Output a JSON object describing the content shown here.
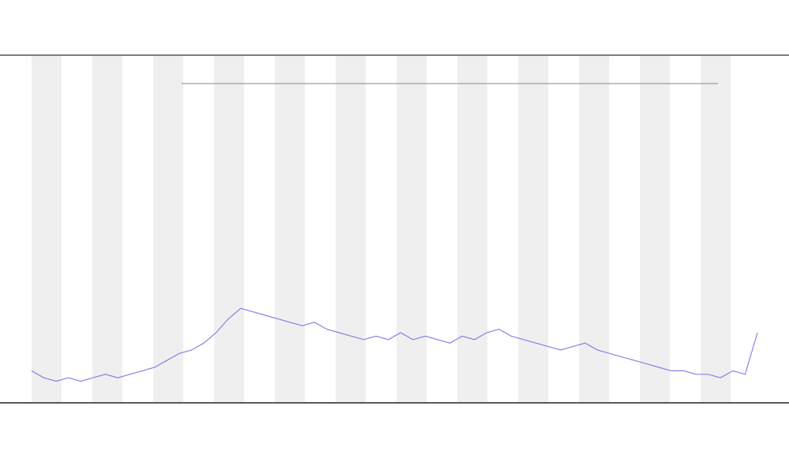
{
  "chart_data": {
    "type": "line",
    "x": [
      1,
      2,
      3,
      4,
      5,
      6,
      7,
      8,
      9,
      10,
      11,
      12,
      13,
      14,
      15,
      16,
      17,
      18,
      19,
      20,
      21,
      22,
      23,
      24,
      25,
      26,
      27,
      28,
      29,
      30,
      31,
      32,
      33,
      34,
      35,
      36,
      37,
      38,
      39,
      40,
      41,
      42,
      43,
      44,
      45,
      46,
      47,
      48,
      49,
      50,
      51,
      52,
      53,
      54,
      55,
      56,
      57,
      58,
      59,
      60
    ],
    "xlim": [
      1,
      60
    ],
    "ylim": [
      0,
      100
    ],
    "series": [
      {
        "color": "#6f6fe0",
        "values": [
          9,
          7,
          6,
          7,
          6,
          7,
          8,
          7,
          8,
          9,
          10,
          12,
          14,
          15,
          17,
          20,
          24,
          27,
          26,
          25,
          24,
          23,
          22,
          23,
          21,
          20,
          19,
          18,
          19,
          18,
          20,
          18,
          19,
          18,
          17,
          19,
          18,
          20,
          21,
          19,
          18,
          17,
          16,
          15,
          16,
          17,
          15,
          14,
          13,
          12,
          11,
          10,
          9,
          9,
          8,
          8,
          7,
          9,
          8,
          20
        ]
      }
    ]
  }
}
